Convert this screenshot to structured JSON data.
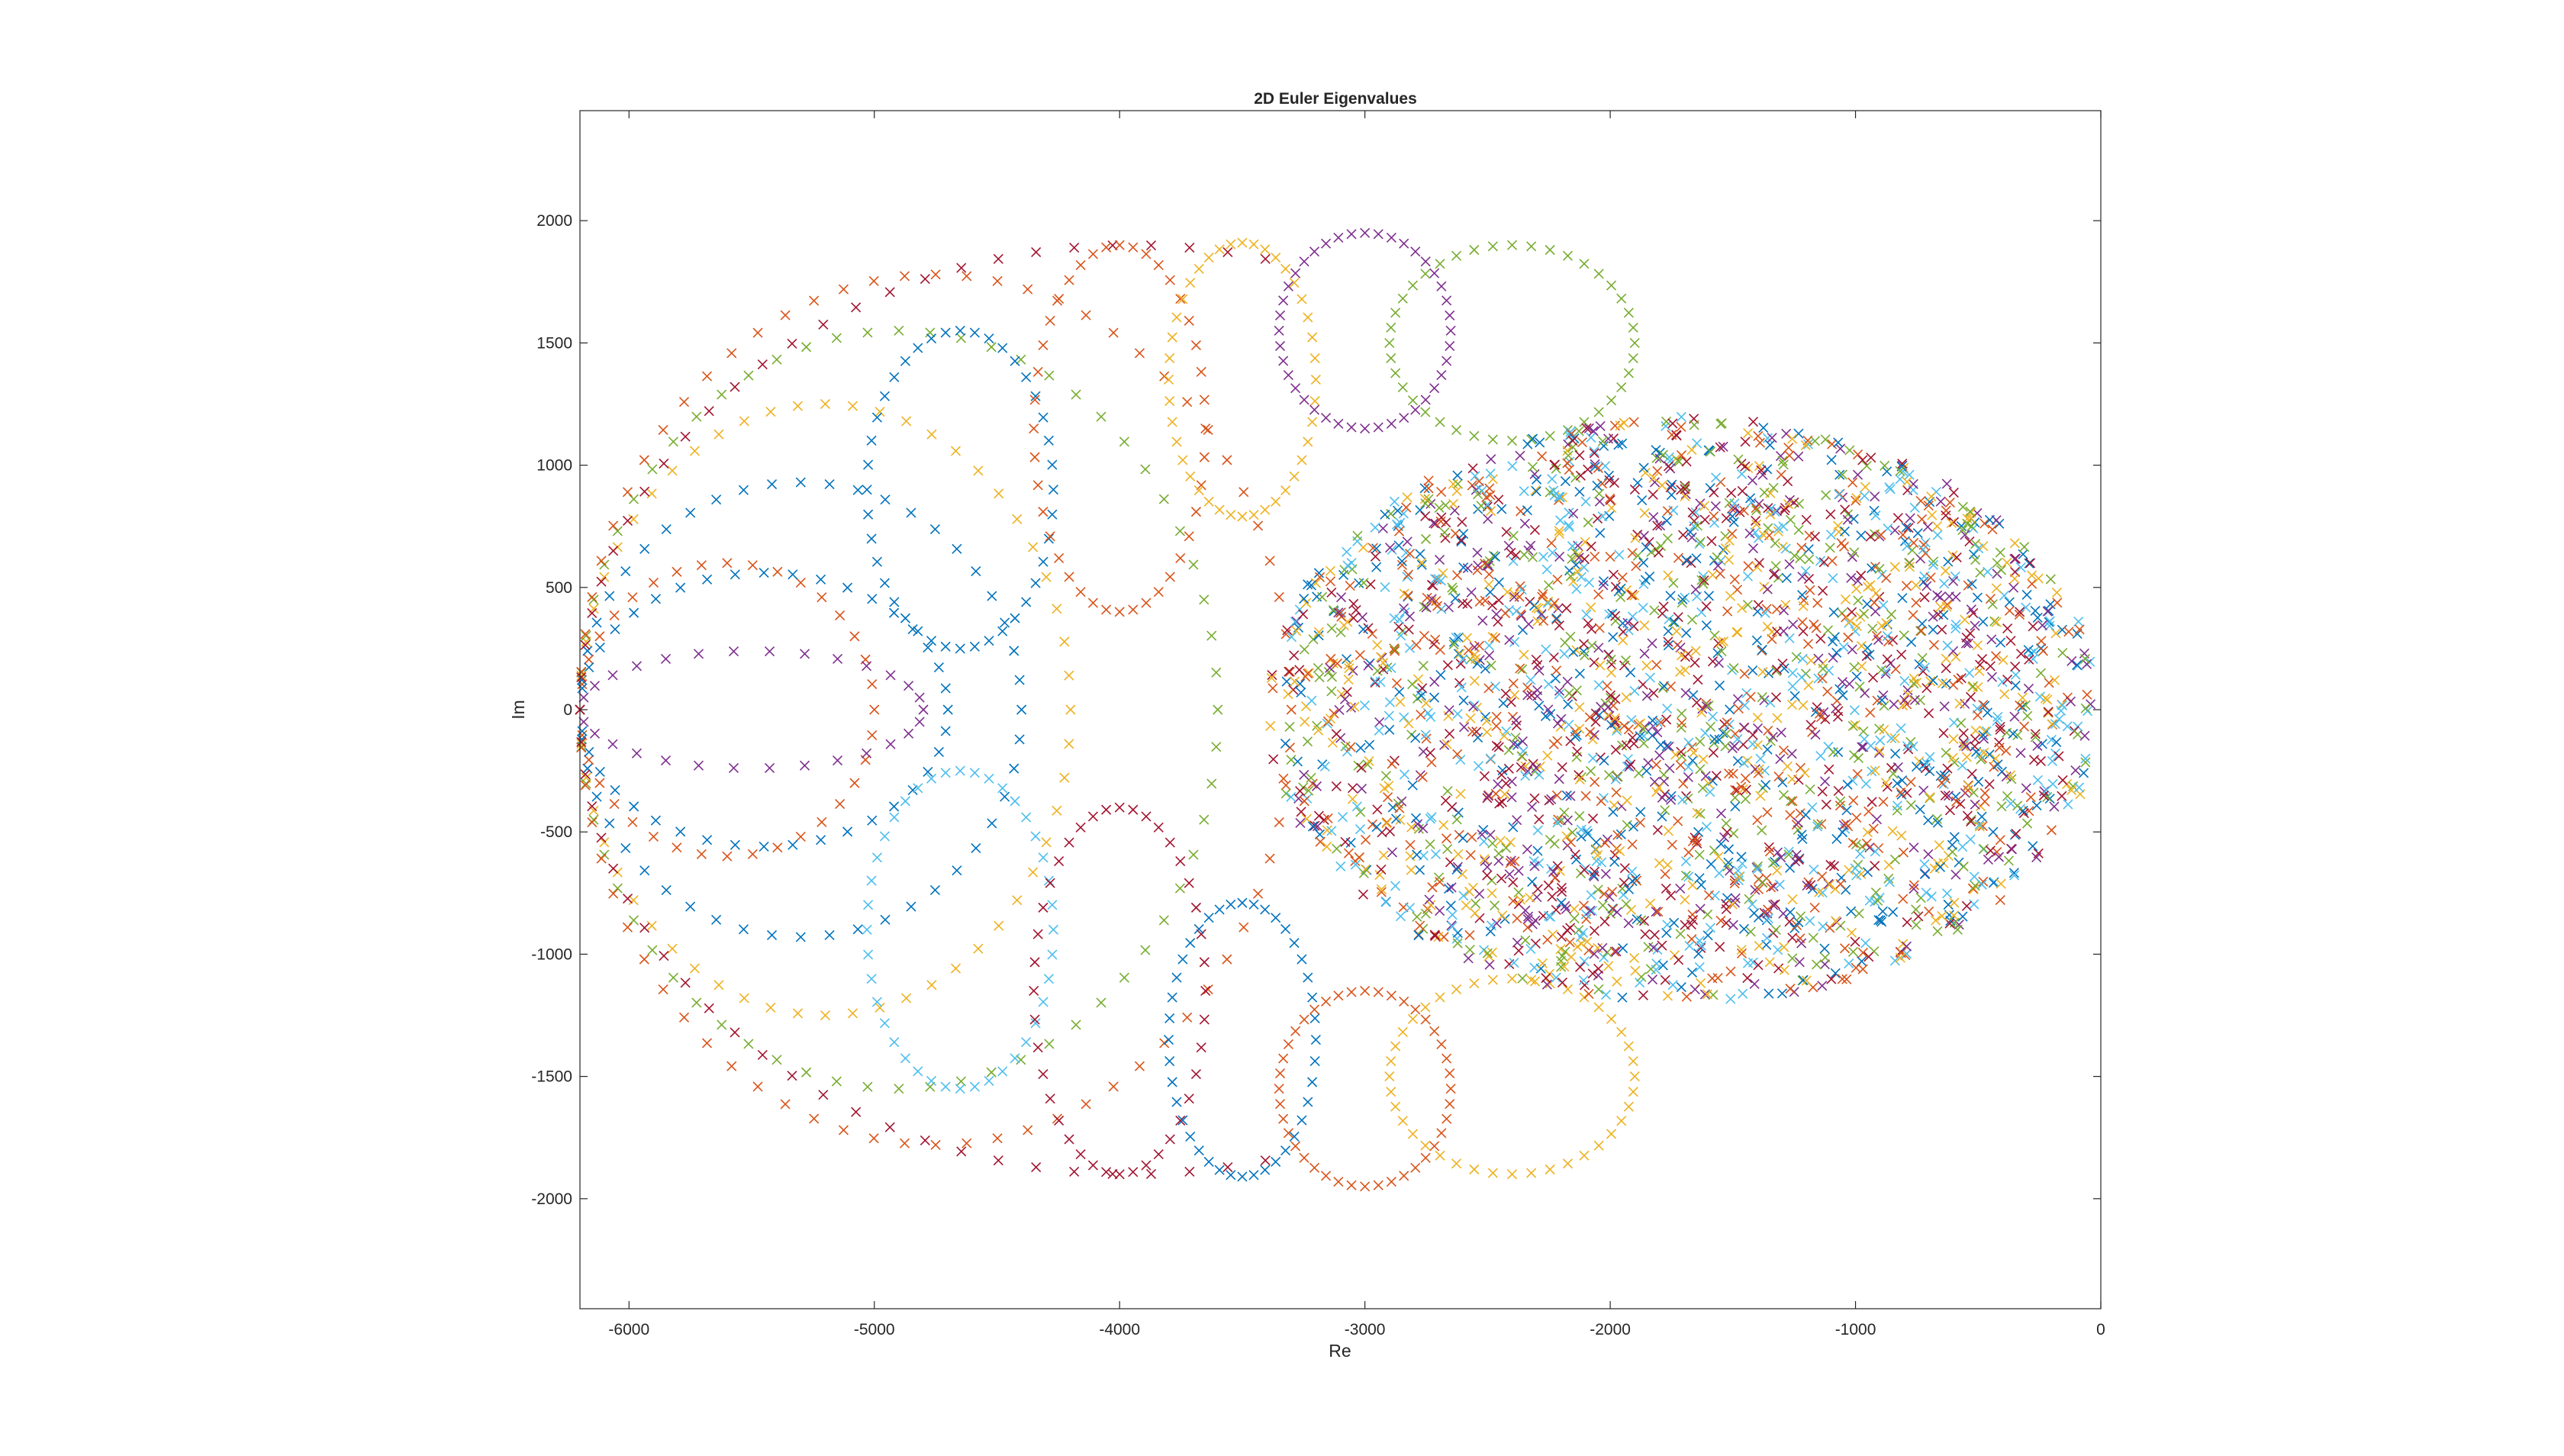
{
  "chart_data": {
    "type": "scatter",
    "title": "2D Euler Eigenvalues",
    "xlabel": "Re",
    "ylabel": "Im",
    "xlim": [
      -6200,
      0
    ],
    "ylim": [
      -2450,
      2450
    ],
    "xticks": [
      -6000,
      -5000,
      -4000,
      -3000,
      -2000,
      -1000,
      0
    ],
    "yticks": [
      -2000,
      -1500,
      -1000,
      -500,
      0,
      500,
      1000,
      1500,
      2000
    ],
    "marker": "x",
    "grid": false,
    "legend": "none",
    "palette": [
      "#0072BD",
      "#D95319",
      "#EDB120",
      "#7E2F8E",
      "#77AC30",
      "#4DBEEE",
      "#A2142F"
    ],
    "outer_loops": [
      {
        "center": [
          -5600,
          0
        ],
        "radius_re": 600,
        "radius_im": 600,
        "color": "#D95319",
        "points": 36
      },
      {
        "center": [
          -5450,
          0
        ],
        "radius_re": 750,
        "radius_im": 560,
        "color": "#0072BD",
        "points": 40
      },
      {
        "center": [
          -5300,
          0
        ],
        "radius_re": 900,
        "radius_im": 930,
        "color": "#0072BD",
        "points": 48
      },
      {
        "center": [
          -5200,
          0
        ],
        "radius_re": 1000,
        "radius_im": 1250,
        "color": "#EDB120",
        "points": 56
      },
      {
        "center": [
          -4900,
          0
        ],
        "radius_re": 1300,
        "radius_im": 1550,
        "color": "#77AC30",
        "points": 64
      },
      {
        "center": [
          -5500,
          0
        ],
        "radius_re": 700,
        "radius_im": 240,
        "color": "#7E2F8E",
        "points": 30
      },
      {
        "center": [
          -4750,
          0
        ],
        "radius_re": 1450,
        "radius_im": 1780,
        "color": "#D95319",
        "points": 72
      },
      {
        "center": [
          -3950,
          0
        ],
        "radius_re": 2250,
        "radius_im": 1900,
        "color": "#A2142F",
        "points": 90
      }
    ],
    "inner_cluster": {
      "center": [
        -1700,
        0
      ],
      "radius_re": 1700,
      "radius_im": 1200,
      "points": 2600
    },
    "petals": [
      {
        "x": -4650,
        "y": 900,
        "r_re": 380,
        "r_im": 650
      },
      {
        "x": -4000,
        "y": 1150,
        "r_re": 350,
        "r_im": 750
      },
      {
        "x": -3500,
        "y": 1350,
        "r_re": 300,
        "r_im": 560
      },
      {
        "x": -3000,
        "y": 1550,
        "r_re": 350,
        "r_im": 400
      },
      {
        "x": -2400,
        "y": 1500,
        "r_re": 500,
        "r_im": 400
      },
      {
        "x": -4650,
        "y": -900,
        "r_re": 380,
        "r_im": 650
      },
      {
        "x": -4000,
        "y": -1150,
        "r_re": 350,
        "r_im": 750
      },
      {
        "x": -3500,
        "y": -1350,
        "r_re": 300,
        "r_im": 560
      },
      {
        "x": -3000,
        "y": -1550,
        "r_re": 350,
        "r_im": 400
      },
      {
        "x": -2400,
        "y": -1500,
        "r_re": 500,
        "r_im": 400
      }
    ]
  }
}
